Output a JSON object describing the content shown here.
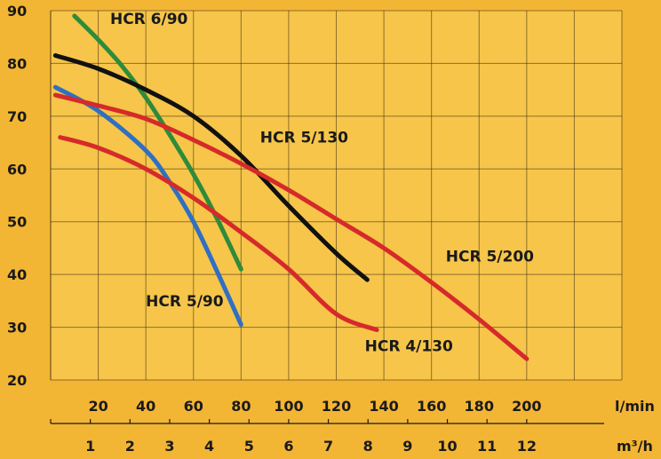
{
  "chart_data": {
    "type": "line",
    "xlabel": "l/min",
    "x2label": "m³/h",
    "xlim": [
      0,
      240
    ],
    "ylim": [
      20,
      90
    ],
    "x_ticks": [
      20,
      40,
      60,
      80,
      100,
      120,
      140,
      160,
      180,
      200
    ],
    "x2_ticks": [
      1,
      2,
      3,
      4,
      5,
      6,
      7,
      8,
      9,
      10,
      11,
      12
    ],
    "y_ticks": [
      20,
      30,
      40,
      50,
      60,
      70,
      80,
      90
    ],
    "grid": true,
    "series": [
      {
        "name": "HCR 6/90",
        "color": "#2e8b3a",
        "x": [
          10,
          20,
          30,
          40,
          50,
          60,
          70,
          80
        ],
        "y": [
          89,
          84.5,
          79.5,
          73.5,
          66.5,
          59,
          50.5,
          41
        ],
        "label_x": 25,
        "label_y": 87.5
      },
      {
        "name": "HCR 5/130",
        "color": "#111111",
        "x": [
          2,
          20,
          40,
          60,
          80,
          100,
          120,
          133
        ],
        "y": [
          81.5,
          79,
          75,
          70,
          62.5,
          53,
          44,
          39
        ],
        "label_x": 88,
        "label_y": 65
      },
      {
        "name": "HCR 5/90",
        "color": "#2f6fc4",
        "x": [
          2,
          20,
          40,
          50,
          60,
          70,
          80
        ],
        "y": [
          75.5,
          71,
          63.5,
          57.5,
          50,
          40.5,
          30.5
        ],
        "label_x": 40,
        "label_y": 34
      },
      {
        "name": "HCR 5/200",
        "color": "#d62a2a",
        "x": [
          2,
          20,
          40,
          60,
          80,
          100,
          120,
          140,
          160,
          180,
          200
        ],
        "y": [
          74,
          72,
          69.5,
          65.5,
          61,
          56,
          50.5,
          45,
          38.5,
          31.5,
          24
        ],
        "label_x": 166,
        "label_y": 42.5
      },
      {
        "name": "HCR 4/130",
        "color": "#d62a2a",
        "x": [
          4,
          20,
          40,
          60,
          80,
          100,
          120,
          137
        ],
        "y": [
          66,
          64,
          60,
          54.5,
          48,
          41,
          32.5,
          29.5
        ],
        "label_x": 132,
        "label_y": 25.5
      }
    ]
  },
  "colors": {
    "background": "#f3b534",
    "plot_background": "#f6c54a",
    "grid": "#3a2a10"
  }
}
